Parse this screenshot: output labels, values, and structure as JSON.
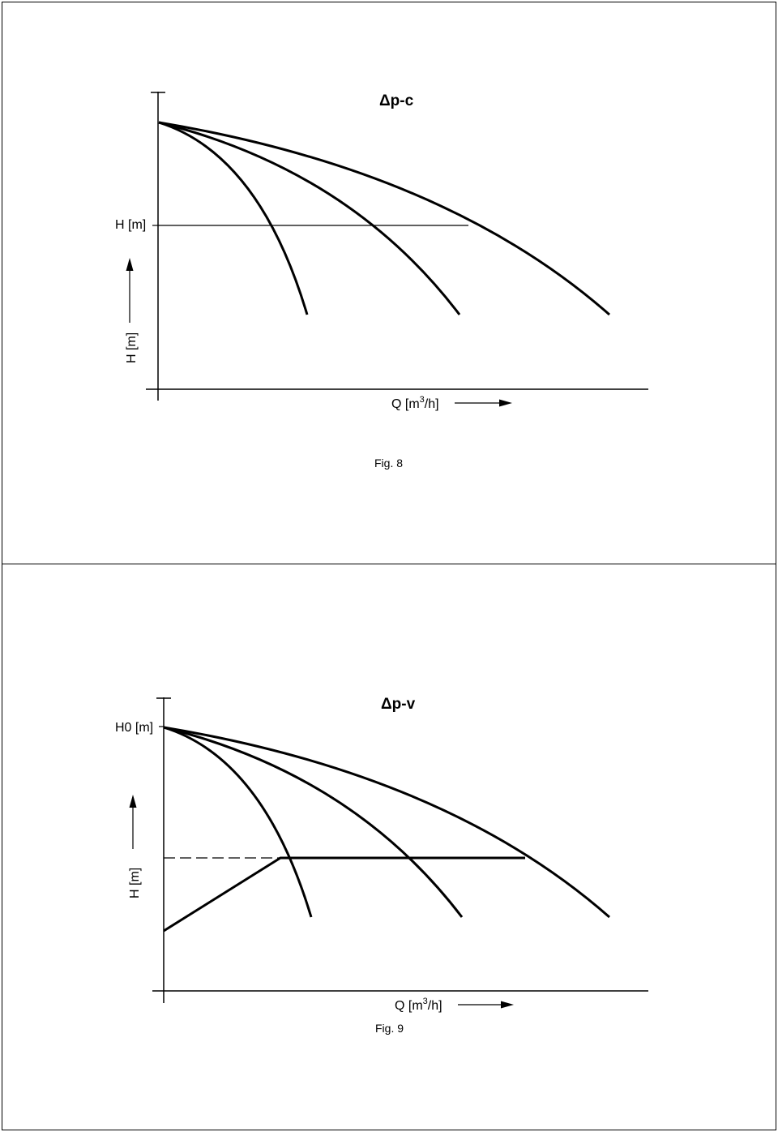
{
  "fig8": {
    "title": "Δp-c",
    "h_tick_label": "H [m]",
    "y_axis_label": "H [m]",
    "x_axis_label_main": "Q [m",
    "x_axis_label_sup": "3",
    "x_axis_label_end": "/h]",
    "caption": "Fig. 8"
  },
  "fig9": {
    "title": "Δp-v",
    "h0_tick_label": "H0 [m]",
    "y_axis_label": "H [m]",
    "x_axis_label_main": "Q [m",
    "x_axis_label_sup": "3",
    "x_axis_label_end": "/h]",
    "caption": "Fig. 9"
  },
  "colors": {
    "line": "#000000",
    "background": "#ffffff"
  }
}
